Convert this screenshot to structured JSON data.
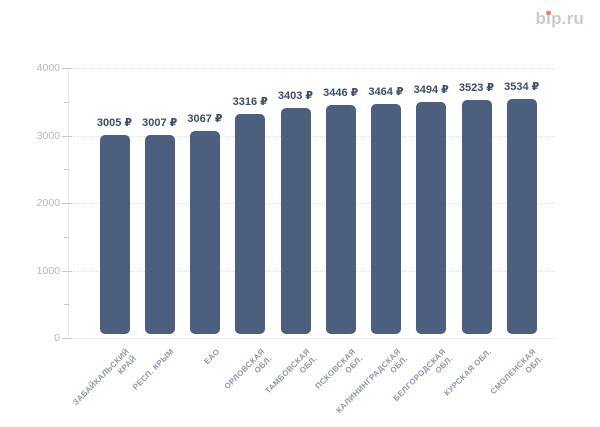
{
  "logo": {
    "text": "bip.ru",
    "parts": [
      "b",
      "i",
      "p.ru"
    ],
    "text_color": "#c7cbd6",
    "dot_color": "#ee7e5e"
  },
  "chart_data": {
    "type": "bar",
    "title": "",
    "xlabel": "",
    "ylabel": "",
    "categories": [
      "ЗАБАЙКАЛЬСКИЙ КРАЙ",
      "РЕСП. КРЫМ",
      "ЕАО",
      "ОРЛОВСКАЯ ОБЛ.",
      "ТАМБОВСКАЯ ОБЛ.",
      "ПСКОВСКАЯ ОБЛ.",
      "КАЛИНИНГРАДСКАЯ ОБЛ.",
      "БЕЛГОРОДСКАЯ ОБЛ.",
      "КУРСКАЯ ОБЛ.",
      "СМОЛЕНСКАЯ ОБЛ."
    ],
    "categories_lines": [
      [
        "ЗАБАЙКАЛЬСКИЙ",
        "КРАЙ"
      ],
      [
        "РЕСП. КРЫМ"
      ],
      [
        "ЕАО"
      ],
      [
        "ОРЛОВСКАЯ",
        "ОБЛ."
      ],
      [
        "ТАМБОВСКАЯ",
        "ОБЛ."
      ],
      [
        "ПСКОВСКАЯ",
        "ОБЛ."
      ],
      [
        "КАЛИНИНГРАДСКАЯ",
        "ОБЛ."
      ],
      [
        "БЕЛГОРОДСКАЯ",
        "ОБЛ."
      ],
      [
        "КУРСКАЯ ОБЛ."
      ],
      [
        "СМОЛЕНСКАЯ",
        "ОБЛ."
      ]
    ],
    "values": [
      3005,
      3007,
      3067,
      3316,
      3403,
      3446,
      3464,
      3494,
      3523,
      3534
    ],
    "value_labels": [
      "3005 ₽",
      "3007 ₽",
      "3067 ₽",
      "3316 ₽",
      "3403 ₽",
      "3446 ₽",
      "3464 ₽",
      "3494 ₽",
      "3523 ₽",
      "3534 ₽"
    ],
    "unit": "₽",
    "ylim": [
      0,
      4000
    ],
    "y_ticks": [
      0,
      1000,
      2000,
      3000,
      4000
    ],
    "y_tick_labels": [
      "0",
      "1000",
      "2000",
      "3000",
      "4000"
    ],
    "y_minor_ticks": [
      500,
      1500,
      2500,
      3500
    ],
    "grid": "horizontal dotted, major ticks only",
    "colors": {
      "bar": "#4d5f7e",
      "value_label": "#3d4e66",
      "y_tick_label": "#b2b8c2",
      "category_label": "#8f98a6",
      "gridline": "#dfe2e6",
      "axis_line": "#e7e9ec",
      "tick": "#c6cad0",
      "background": "#ffffff"
    }
  }
}
